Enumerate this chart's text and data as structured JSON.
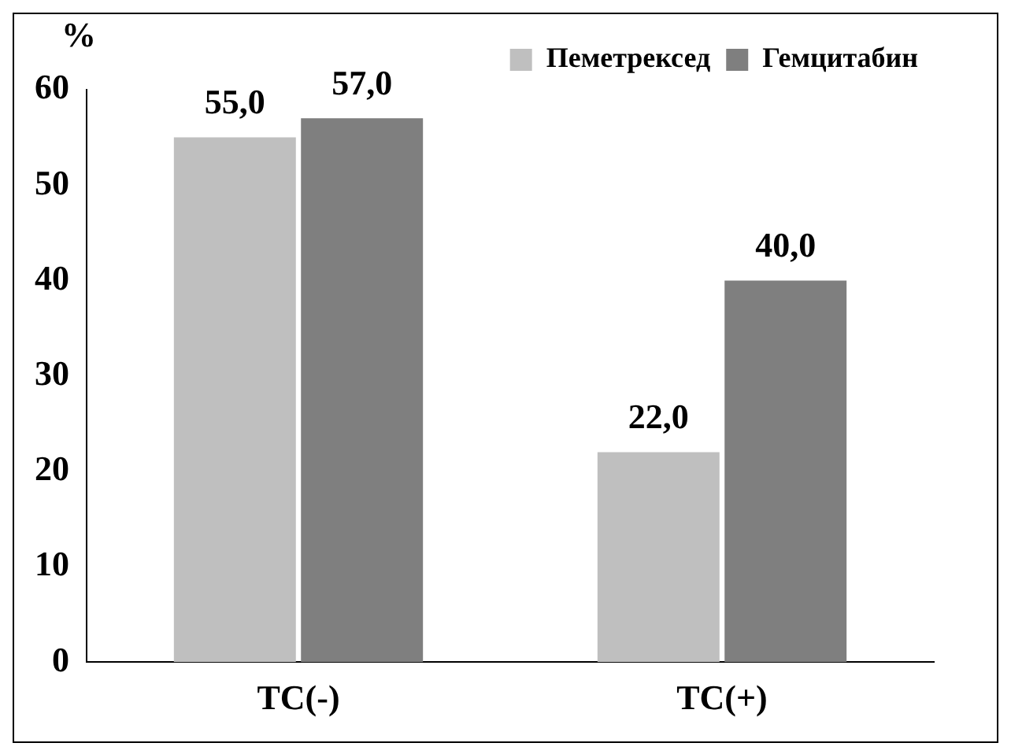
{
  "chart_data": {
    "type": "bar",
    "ylabel": "%",
    "categories": [
      "ТС(-)",
      "ТС(+)"
    ],
    "series": [
      {
        "name": "Пеметрексед",
        "color": "#bfbfbf",
        "values": [
          55.0,
          22.0
        ],
        "value_labels": [
          "55,0",
          "22,0"
        ]
      },
      {
        "name": "Гемцитабин",
        "color": "#7f7f7f",
        "values": [
          57.0,
          40.0
        ],
        "value_labels": [
          "57,0",
          "40,0"
        ]
      }
    ],
    "ylim": [
      0,
      60
    ],
    "yticks": [
      0,
      10,
      20,
      30,
      40,
      50,
      60
    ],
    "grid": false,
    "legend": "top right"
  }
}
